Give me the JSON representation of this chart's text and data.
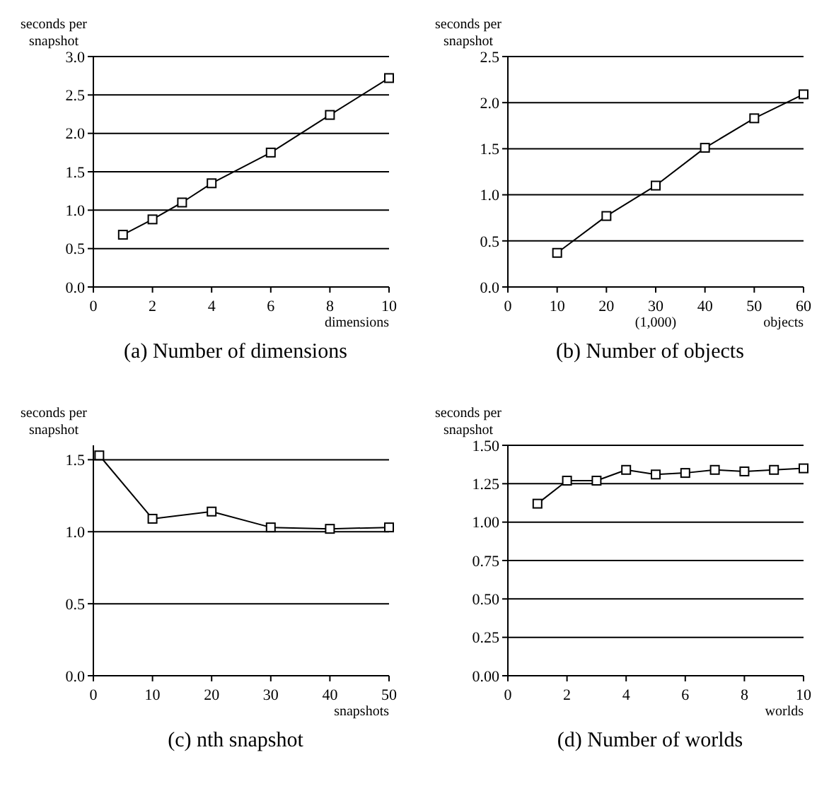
{
  "chart_data": [
    {
      "type": "line",
      "title": "(a) Number of dimensions",
      "xlabel": "dimensions",
      "ylabel": "seconds per snapshot",
      "x": [
        1,
        2,
        3,
        4,
        6,
        8,
        10
      ],
      "series": [
        {
          "color": "#000000",
          "values": [
            0.68,
            0.88,
            1.1,
            1.35,
            1.75,
            2.24,
            2.72
          ]
        }
      ],
      "xlim": [
        0,
        10
      ],
      "xticks": [
        0,
        2,
        4,
        6,
        8,
        10
      ],
      "ylim": [
        0,
        3
      ],
      "yticks": [
        {
          "value": 0,
          "label": "0.0"
        },
        {
          "value": 0.5,
          "label": "0.5"
        },
        {
          "value": 1,
          "label": "1.0"
        },
        {
          "value": 1.5,
          "label": "1.5"
        },
        {
          "value": 2,
          "label": "2.0"
        },
        {
          "value": 2.5,
          "label": "2.5"
        },
        {
          "value": 3,
          "label": "3.0"
        }
      ],
      "grid": "y",
      "marker": "square",
      "line_style": "solid"
    },
    {
      "type": "line",
      "title": "(b) Number of objects",
      "xlabel": "objects",
      "ylabel": "seconds per snapshot",
      "annotations": [
        "(1,000)"
      ],
      "x": [
        10,
        20,
        30,
        40,
        50,
        60
      ],
      "series": [
        {
          "color": "#000000",
          "values": [
            0.37,
            0.77,
            1.1,
            1.51,
            1.83,
            2.09
          ]
        }
      ],
      "xlim": [
        0,
        60
      ],
      "xticks": [
        0,
        10,
        20,
        30,
        40,
        50,
        60
      ],
      "ylim": [
        0,
        2.5
      ],
      "yticks": [
        {
          "value": 0,
          "label": "0.0"
        },
        {
          "value": 0.5,
          "label": "0.5"
        },
        {
          "value": 1,
          "label": "1.0"
        },
        {
          "value": 1.5,
          "label": "1.5"
        },
        {
          "value": 2,
          "label": "2.0"
        },
        {
          "value": 2.5,
          "label": "2.5"
        }
      ],
      "grid": "y",
      "marker": "square",
      "line_style": "solid"
    },
    {
      "type": "line",
      "title": "(c) nth snapshot",
      "xlabel": "snapshots",
      "ylabel": "seconds per snapshot",
      "x": [
        1,
        10,
        20,
        30,
        40,
        50
      ],
      "series": [
        {
          "color": "#000000",
          "values": [
            1.53,
            1.09,
            1.14,
            1.03,
            1.02,
            1.03
          ]
        }
      ],
      "xlim": [
        0,
        50
      ],
      "xticks": [
        0,
        10,
        20,
        30,
        40,
        50
      ],
      "ylim": [
        0,
        1.6
      ],
      "yticks": [
        {
          "value": 0,
          "label": "0.0"
        },
        {
          "value": 0.5,
          "label": "0.5"
        },
        {
          "value": 1,
          "label": "1.0"
        },
        {
          "value": 1.5,
          "label": "1.5"
        }
      ],
      "grid": "y",
      "marker": "square",
      "line_style": "solid"
    },
    {
      "type": "line",
      "title": "(d) Number of worlds",
      "xlabel": "worlds",
      "ylabel": "seconds per snapshot",
      "x": [
        1,
        2,
        3,
        4,
        5,
        6,
        7,
        8,
        9,
        10
      ],
      "series": [
        {
          "color": "#000000",
          "values": [
            1.12,
            1.27,
            1.27,
            1.34,
            1.31,
            1.32,
            1.34,
            1.33,
            1.34,
            1.35
          ]
        }
      ],
      "xlim": [
        0,
        10
      ],
      "xticks": [
        0,
        2,
        4,
        6,
        8,
        10
      ],
      "ylim": [
        0,
        1.5
      ],
      "yticks": [
        {
          "value": 0,
          "label": "0.00"
        },
        {
          "value": 0.25,
          "label": "0.25"
        },
        {
          "value": 0.5,
          "label": "0.50"
        },
        {
          "value": 0.75,
          "label": "0.75"
        },
        {
          "value": 1,
          "label": "1.00"
        },
        {
          "value": 1.25,
          "label": "1.25"
        },
        {
          "value": 1.5,
          "label": "1.50"
        }
      ],
      "grid": "y",
      "marker": "square",
      "line_style": "solid"
    }
  ]
}
